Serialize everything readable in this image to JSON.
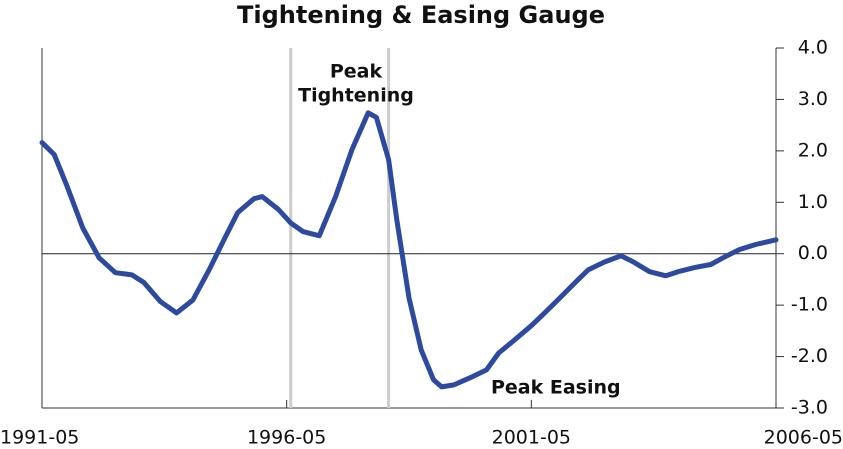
{
  "chart_data": {
    "type": "line",
    "title": "Tightening & Easing Gauge",
    "x": [
      "1991-05",
      "1991-08",
      "1991-11",
      "1992-03",
      "1992-07",
      "1992-11",
      "1993-03",
      "1993-06",
      "1993-10",
      "1994-02",
      "1994-06",
      "1994-10",
      "1995-02",
      "1995-05",
      "1995-09",
      "1995-11",
      "1996-03",
      "1996-06",
      "1996-09",
      "1996-11",
      "1997-01",
      "1997-02",
      "1997-05",
      "1997-09",
      "1998-01",
      "1998-03",
      "1998-06",
      "1998-08",
      "1998-11",
      "1999-02",
      "1999-05",
      "1999-07",
      "1999-10",
      "2000-02",
      "2000-06",
      "2000-09",
      "2001-01",
      "2001-05",
      "2001-08",
      "2001-12",
      "2002-04",
      "2002-07",
      "2002-11",
      "2003-03",
      "2003-06",
      "2003-10",
      "2004-02",
      "2004-05",
      "2004-09",
      "2005-01",
      "2005-04",
      "2005-08",
      "2005-12",
      "2006-05"
    ],
    "series": [
      {
        "color": "#2e4a9e",
        "values": [
          2.16,
          1.93,
          1.34,
          0.5,
          -0.08,
          -0.37,
          -0.41,
          -0.56,
          -0.93,
          -1.15,
          -0.9,
          -0.31,
          0.33,
          0.8,
          1.07,
          1.11,
          0.86,
          0.6,
          0.43,
          0.39,
          0.35,
          0.54,
          1.11,
          2.02,
          2.74,
          2.65,
          1.83,
          0.66,
          -0.86,
          -1.87,
          -2.45,
          -2.59,
          -2.55,
          -2.41,
          -2.26,
          -1.93,
          -1.67,
          -1.4,
          -1.17,
          -0.86,
          -0.54,
          -0.31,
          -0.16,
          -0.04,
          -0.16,
          -0.35,
          -0.43,
          -0.35,
          -0.27,
          -0.21,
          -0.08,
          0.08,
          0.18,
          0.27
        ]
      }
    ],
    "xlim": [
      "1991-05",
      "2006-05"
    ],
    "xticks": [
      "1991-05",
      "1996-05",
      "2001-05",
      "2006-05"
    ],
    "ylim": [
      -3,
      4
    ],
    "yticks": [
      {
        "value": 4,
        "label": "4.0"
      },
      {
        "value": 3,
        "label": "3.0"
      },
      {
        "value": 2,
        "label": "2.0"
      },
      {
        "value": 1,
        "label": "1.0"
      },
      {
        "value": 0,
        "label": "0.0"
      },
      {
        "value": -1,
        "label": "-1.0"
      },
      {
        "value": -2,
        "label": "-2.0"
      },
      {
        "value": -3,
        "label": "-3.0"
      }
    ],
    "zero_line": true,
    "reference_lines": [
      "1996-06",
      "1998-06"
    ],
    "annotations": [
      {
        "lines": [
          "Peak",
          "Tightening"
        ],
        "x": "1997-10"
      },
      {
        "lines": [
          "Peak Easing"
        ],
        "x": "2001-11"
      }
    ]
  }
}
